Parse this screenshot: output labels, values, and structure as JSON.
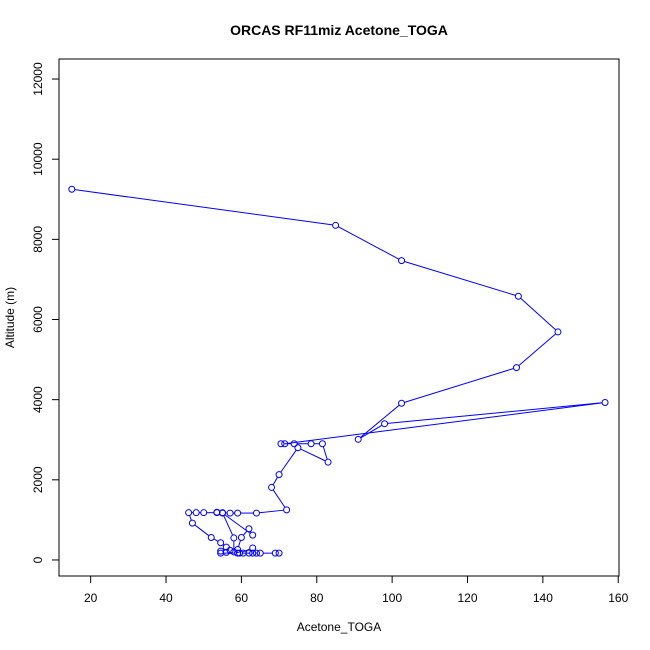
{
  "chart_data": {
    "type": "line",
    "title": "ORCAS RF11miz Acetone_TOGA",
    "xlabel": "Acetone_TOGA",
    "ylabel": "Altitude (m)",
    "xlim": [
      11.6,
      160.2
    ],
    "ylim": [
      -400,
      12500
    ],
    "xticks": [
      20,
      40,
      60,
      80,
      100,
      120,
      140,
      160
    ],
    "yticks": [
      0,
      2000,
      4000,
      6000,
      8000,
      10000,
      12000
    ],
    "grid": false,
    "series": [
      {
        "color": "#0000ff",
        "marker": "open-circle",
        "points": [
          [
            15,
            9250
          ],
          [
            85,
            8350
          ],
          [
            102.5,
            7470
          ],
          [
            133.5,
            6580
          ],
          [
            144,
            5690
          ],
          [
            133,
            4800
          ],
          [
            102.5,
            3910
          ],
          [
            91,
            3010
          ],
          [
            98,
            3400
          ],
          [
            156.5,
            3930
          ],
          [
            71.5,
            2900
          ],
          [
            70.5,
            2900
          ],
          [
            74,
            2900
          ],
          [
            78.5,
            2900
          ],
          [
            81.5,
            2900
          ],
          [
            83,
            2440
          ],
          [
            75,
            2800
          ],
          [
            70,
            2130
          ],
          [
            68,
            1810
          ],
          [
            72,
            1250
          ],
          [
            64,
            1170
          ],
          [
            59,
            1170
          ],
          [
            57,
            1170
          ],
          [
            55,
            1180
          ],
          [
            53.5,
            1190
          ],
          [
            53.5,
            1180
          ],
          [
            50,
            1180
          ],
          [
            48,
            1180
          ],
          [
            46,
            1180
          ],
          [
            47,
            920
          ],
          [
            52,
            560
          ],
          [
            54.5,
            430
          ],
          [
            56,
            320
          ],
          [
            57,
            240
          ],
          [
            59,
            260
          ],
          [
            60,
            560
          ],
          [
            62,
            780
          ],
          [
            63,
            620
          ],
          [
            55,
            1170
          ],
          [
            58,
            550
          ],
          [
            58,
            200
          ],
          [
            56,
            190
          ],
          [
            54.5,
            220
          ],
          [
            54.5,
            170
          ],
          [
            59,
            170
          ],
          [
            60.5,
            170
          ],
          [
            62,
            170
          ],
          [
            64,
            170
          ],
          [
            63,
            300
          ],
          [
            59.5,
            170
          ],
          [
            63,
            170
          ],
          [
            65,
            170
          ],
          [
            69,
            170
          ],
          [
            70,
            170
          ]
        ]
      }
    ]
  }
}
